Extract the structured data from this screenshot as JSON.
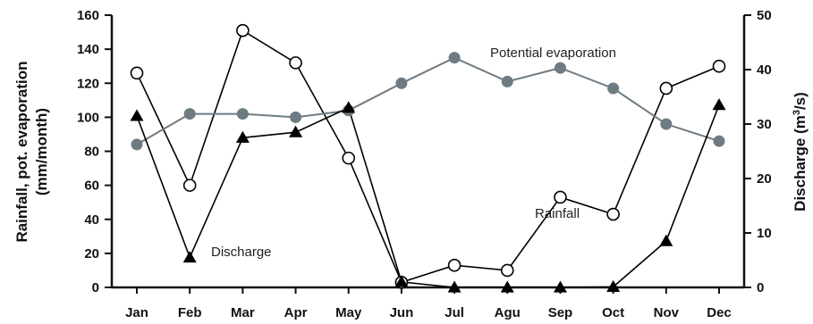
{
  "chart_data": {
    "type": "line",
    "categories": [
      "Jan",
      "Feb",
      "Mar",
      "Apr",
      "May",
      "Jun",
      "Jul",
      "Agu",
      "Sep",
      "Oct",
      "Nov",
      "Dec"
    ],
    "left_axis": {
      "title_line1": "Rainfall, pot. evaporation",
      "title_line2": "(mm/month)",
      "ylim": [
        0,
        160
      ],
      "ticks": [
        "0",
        "20",
        "40",
        "60",
        "80",
        "100",
        "120",
        "140",
        "160"
      ]
    },
    "right_axis": {
      "title_prefix": "Discharge (m",
      "title_sup": "3",
      "title_suffix": "/s)",
      "ylim": [
        0,
        50
      ],
      "ticks": [
        "0",
        "10",
        "20",
        "30",
        "40",
        "50"
      ]
    },
    "series": [
      {
        "key": "rainfall",
        "annotation": "Rainfall",
        "axis": "left",
        "marker": "open-circle",
        "color": "#000000",
        "values": [
          126,
          60,
          151,
          132,
          76,
          3,
          13,
          10,
          53,
          43,
          117,
          130
        ]
      },
      {
        "key": "evaporation",
        "annotation": "Potential evaporation",
        "axis": "left",
        "marker": "filled-circle",
        "color": "#6f7b82",
        "values": [
          84,
          102,
          102,
          100,
          104,
          120,
          135,
          121,
          129,
          117,
          96,
          86
        ]
      },
      {
        "key": "discharge",
        "annotation": "Discharge",
        "axis": "right",
        "marker": "filled-triangle",
        "color": "#000000",
        "values": [
          31.5,
          5.5,
          27.5,
          28.5,
          33,
          1,
          0,
          0,
          0,
          0.1,
          8.5,
          33.5
        ]
      }
    ],
    "grid": false
  }
}
